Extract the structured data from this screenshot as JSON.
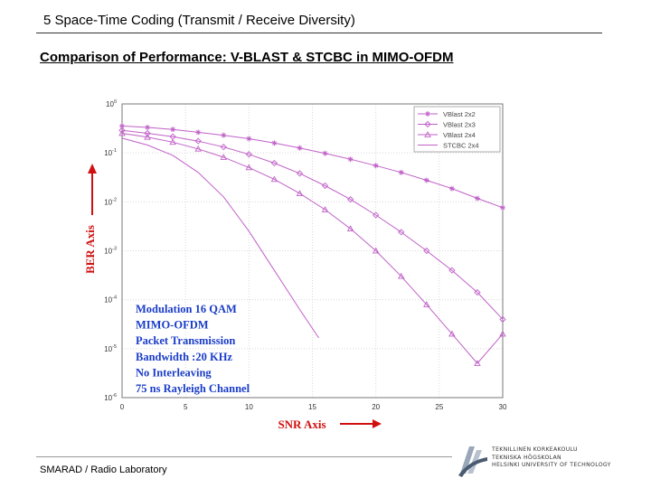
{
  "header": {
    "section": "5 Space-Time Coding (Transmit / Receive Diversity)"
  },
  "slide_title": "Comparison of Performance: V-BLAST & STCBC in MIMO-OFDM",
  "footer": {
    "lab": "SMARAD / Radio Laboratory"
  },
  "university": {
    "lines": [
      "TEKNILLINEN KORKEAKOULU",
      "TEKNISKA HÖGSKOLAN",
      "HELSINKI UNIVERSITY OF TECHNOLOGY"
    ]
  },
  "colors": {
    "series": "#c060c8",
    "annotation": "#1a3cc8",
    "axis_label": "#d01010",
    "arrow": "#d01010"
  },
  "chart_data": {
    "type": "line",
    "xlabel": "SNR Axis",
    "ylabel": "BER Axis",
    "xlim": [
      0,
      30
    ],
    "ylim_exponent": [
      -6,
      0
    ],
    "yscale": "log",
    "x_ticks": [
      0,
      5,
      10,
      15,
      20,
      25,
      30
    ],
    "y_ticks": [
      {
        "base": "10",
        "exp": "0"
      },
      {
        "base": "10",
        "exp": "-1"
      },
      {
        "base": "10",
        "exp": "-2"
      },
      {
        "base": "10",
        "exp": "-3"
      },
      {
        "base": "10",
        "exp": "-4"
      },
      {
        "base": "10",
        "exp": "-5"
      },
      {
        "base": "10",
        "exp": "-6"
      }
    ],
    "grid": true,
    "legend_position": "top-right",
    "series": [
      {
        "name": "VBlast 2x2",
        "marker": "star",
        "x": [
          0,
          2,
          4,
          6,
          8,
          10,
          12,
          14,
          16,
          18,
          20,
          22,
          24,
          26,
          28,
          30
        ],
        "log10_y": [
          -0.45,
          -0.48,
          -0.52,
          -0.58,
          -0.64,
          -0.71,
          -0.8,
          -0.9,
          -1.01,
          -1.13,
          -1.26,
          -1.4,
          -1.56,
          -1.73,
          -1.93,
          -2.12
        ]
      },
      {
        "name": "VBlast 2x3",
        "marker": "diamond",
        "x": [
          0,
          2,
          4,
          6,
          8,
          10,
          12,
          14,
          16,
          18,
          20,
          22,
          24,
          26,
          28,
          30
        ],
        "log10_y": [
          -0.54,
          -0.6,
          -0.67,
          -0.76,
          -0.88,
          -1.03,
          -1.21,
          -1.42,
          -1.67,
          -1.95,
          -2.27,
          -2.62,
          -3.0,
          -3.4,
          -3.85,
          -4.4
        ]
      },
      {
        "name": "VBlast 2x4",
        "marker": "triangle",
        "x": [
          0,
          2,
          4,
          6,
          8,
          10,
          12,
          14,
          16,
          18,
          20,
          22,
          24,
          26,
          28,
          30
        ],
        "log10_y": [
          -0.6,
          -0.68,
          -0.78,
          -0.92,
          -1.09,
          -1.3,
          -1.54,
          -1.83,
          -2.16,
          -2.55,
          -3.0,
          -3.52,
          -4.1,
          -4.7,
          -5.3,
          -4.7
        ]
      },
      {
        "name": "STCBC 2x4",
        "marker": "none",
        "x": [
          0,
          2,
          4,
          6,
          8,
          10,
          12,
          14,
          15.5
        ],
        "log10_y": [
          -0.7,
          -0.84,
          -1.05,
          -1.4,
          -1.9,
          -2.6,
          -3.4,
          -4.2,
          -4.78
        ]
      }
    ],
    "annotations": [
      "Modulation 16 QAM",
      "MIMO-OFDM",
      "Packet Transmission",
      "Bandwidth :20 KHz",
      "No Interleaving",
      "75 ns Rayleigh Channel"
    ]
  }
}
